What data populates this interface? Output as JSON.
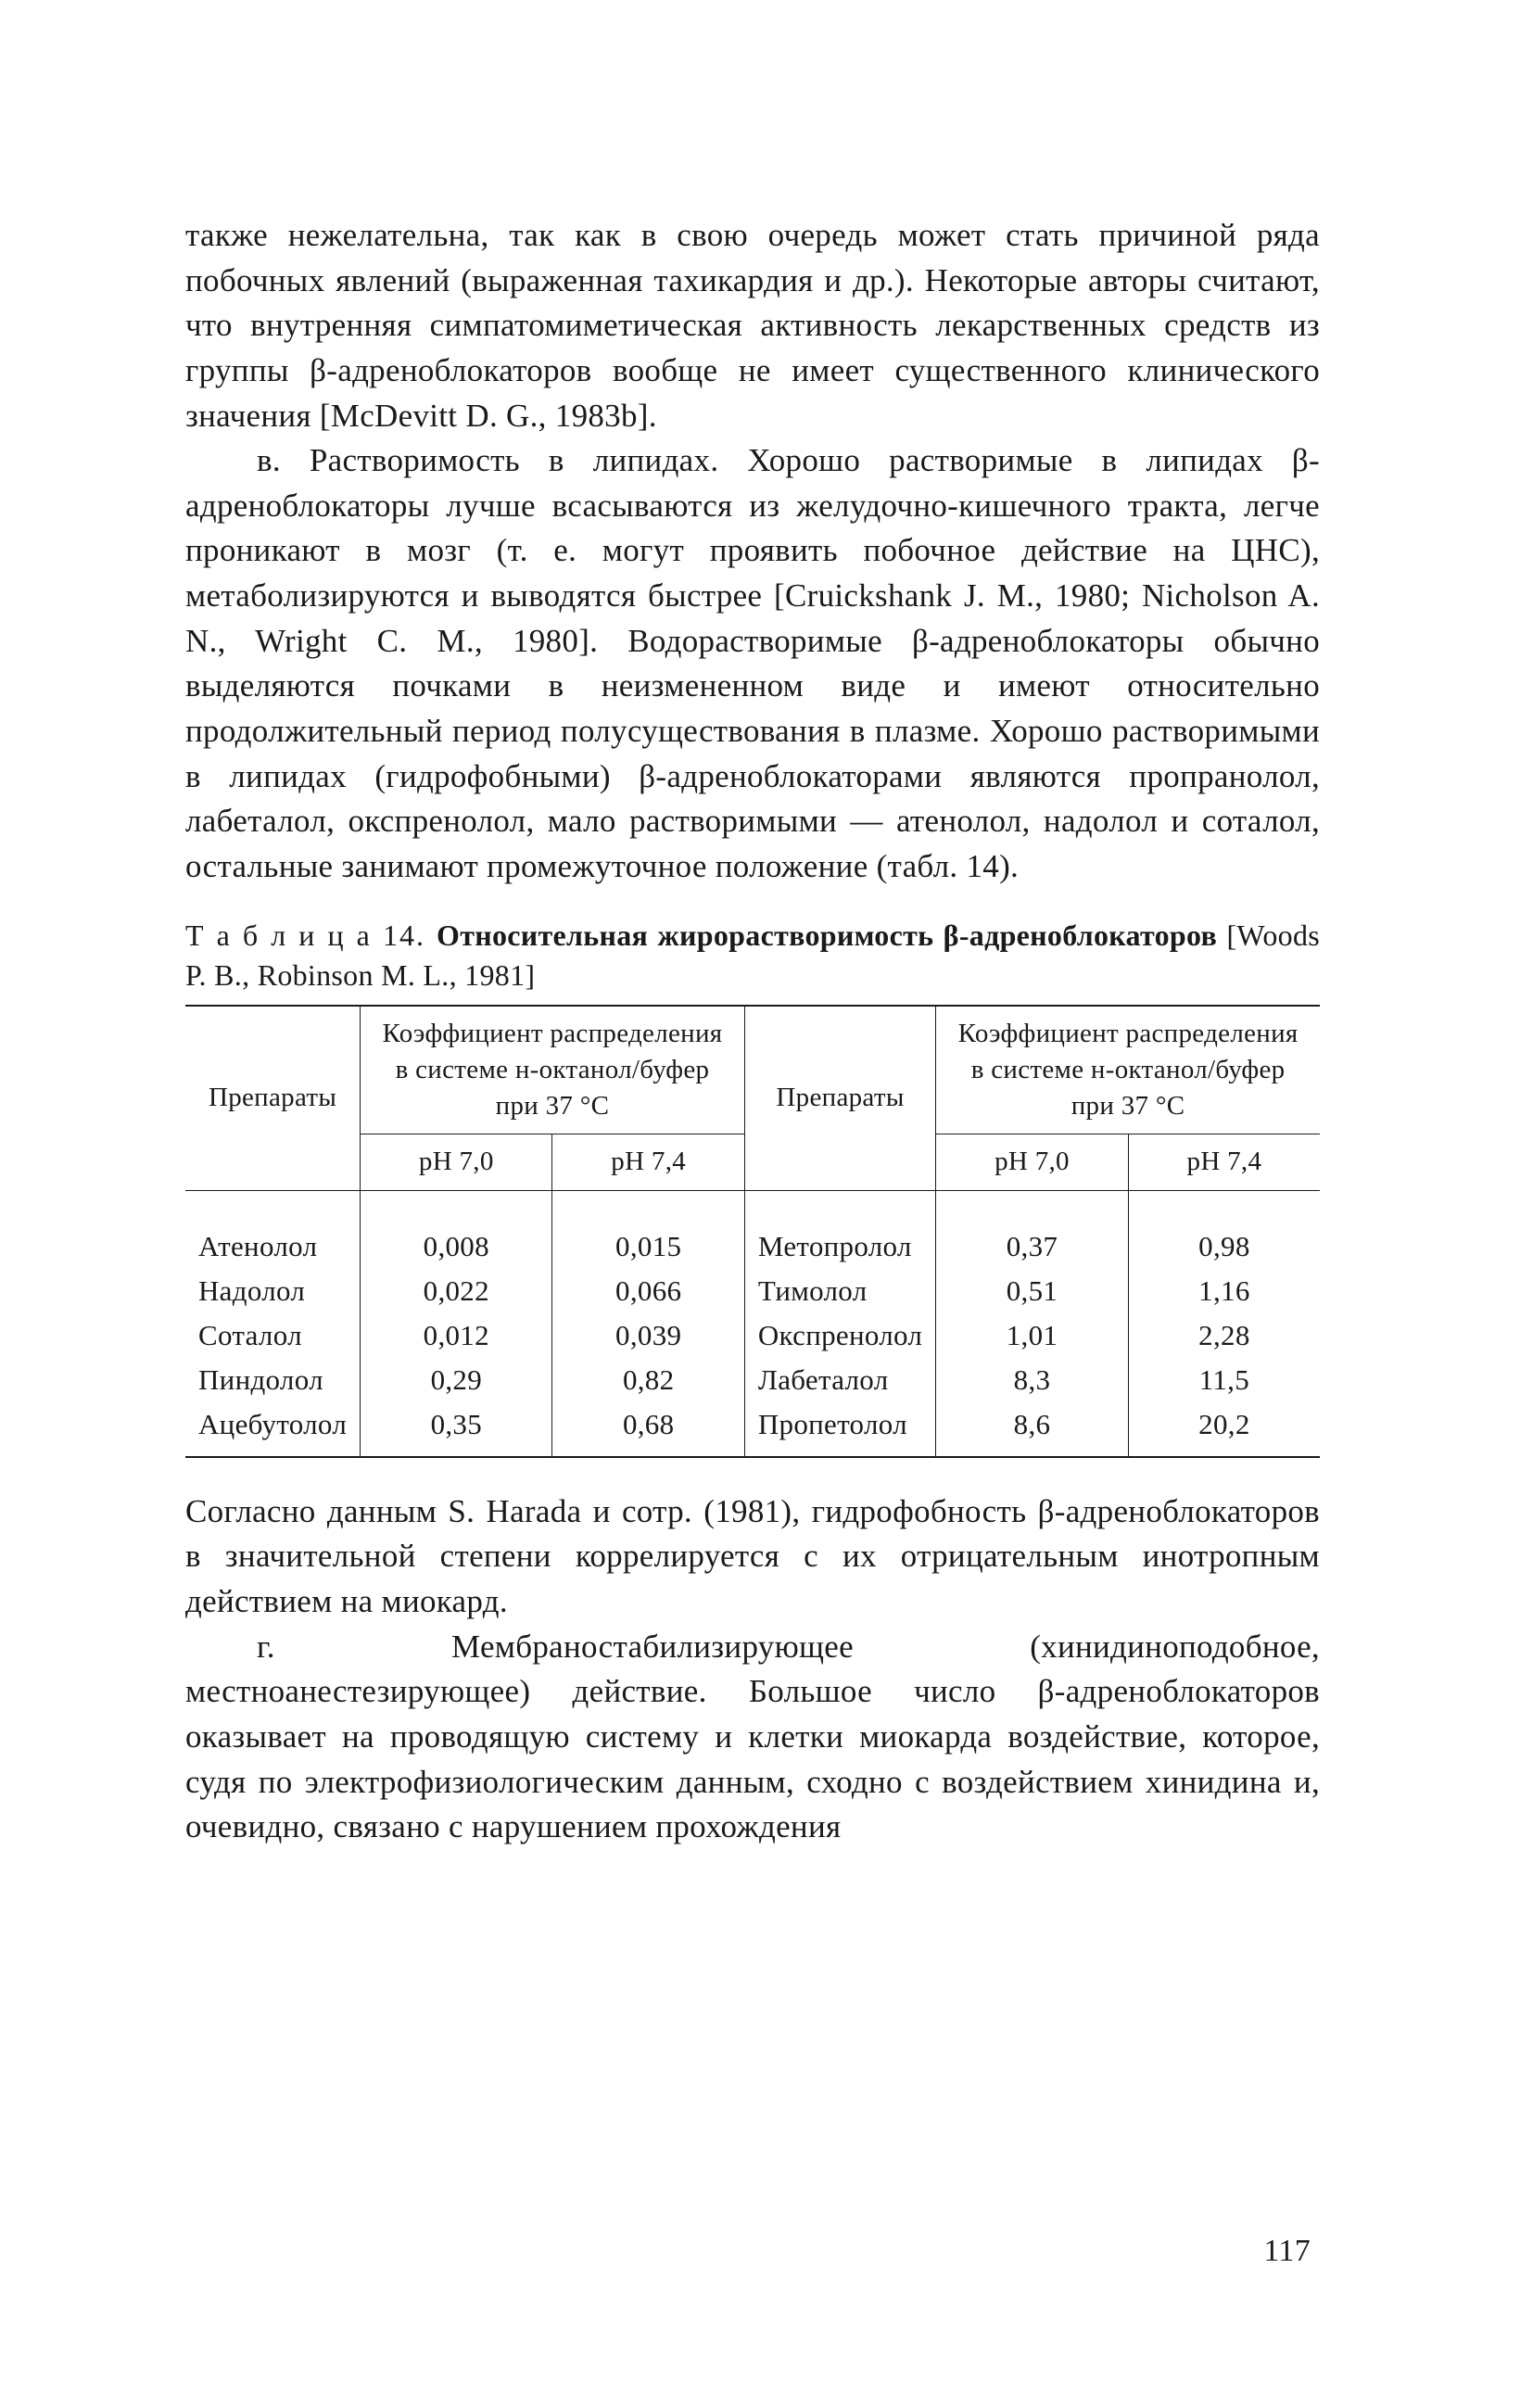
{
  "paragraphs": {
    "p1": "также нежелательна, так как в свою очередь может стать причиной ряда побочных явлений (выраженная тахикардия и др.). Некоторые авторы считают, что внутренняя симпатомиметическая активность лекарственных средств из группы β-адреноблокаторов вообще не имеет существенного клинического значения [McDevitt D. G., 1983b].",
    "p2": "в. Растворимость в липидах. Хорошо растворимые в липидах β-адреноблокаторы лучше всасываются из желудочно-кишечного тракта, легче проникают в мозг (т. е. могут проявить побочное действие на ЦНС), метаболизируются и выводятся быстрее [Cruickshank J. M., 1980; Nicholson A. N., Wright C. M., 1980]. Водорастворимые β-адреноблокаторы обычно выделяются почками в неизмененном виде и имеют относительно продолжительный период полусуществования в плазме. Хорошо растворимыми в липидах (гидрофобными) β-адреноблокаторами являются пропранолол, лабеталол, окспренолол, мало растворимыми — атенолол, надолол и соталол, остальные занимают промежуточное положение (табл. 14).",
    "p3": "Согласно данным S. Harada и сотр. (1981), гидрофобность β-адреноблокаторов в значительной степени коррелируется с их отрицательным инотропным действием на миокард.",
    "p4": "г. Мембраностабилизирующее (хинидиноподобное, местноанестезирующее) действие. Большое число β-адреноблокаторов оказывает на проводящую систему и клетки миокарда воздействие, которое, судя по электрофизиологическим данным, сходно с воздействием хинидина и, очевидно, связано с нарушением прохождения"
  },
  "table": {
    "caption_lead": "Т а б л и ц а 14. ",
    "caption_title": "Относительная жирорастворимость β-адреноблокаторов",
    "caption_tail": " [Woods P. B., Robinson M. L., 1981]",
    "header": {
      "col_drugs": "Препараты",
      "col_coef": "Коэффициент распределения в системе н-октанол/буфер при 37 °C",
      "sub_ph70": "pH 7,0",
      "sub_ph74": "pH 7,4"
    },
    "left_rows": [
      {
        "name": "Атенолол",
        "ph70": "0,008",
        "ph74": "0,015"
      },
      {
        "name": "Надолол",
        "ph70": "0,022",
        "ph74": "0,066"
      },
      {
        "name": "Соталол",
        "ph70": "0,012",
        "ph74": "0,039"
      },
      {
        "name": "Пиндолол",
        "ph70": "0,29",
        "ph74": "0,82"
      },
      {
        "name": "Ацебутолол",
        "ph70": "0,35",
        "ph74": "0,68"
      }
    ],
    "right_rows": [
      {
        "name": "Метопролол",
        "ph70": "0,37",
        "ph74": "0,98"
      },
      {
        "name": "Тимолол",
        "ph70": "0,51",
        "ph74": "1,16"
      },
      {
        "name": "Окспренолол",
        "ph70": "1,01",
        "ph74": "2,28"
      },
      {
        "name": "Лабеталол",
        "ph70": "8,3",
        "ph74": "11,5"
      },
      {
        "name": "Пропетолол",
        "ph70": "8,6",
        "ph74": "20,2"
      }
    ]
  },
  "page_number": "117",
  "colors": {
    "text": "#1a1a1a",
    "background": "#ffffff",
    "rule": "#1a1a1a"
  }
}
